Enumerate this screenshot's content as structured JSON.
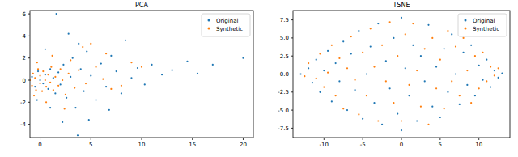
{
  "chart_data": [
    {
      "type": "scatter",
      "title": "PCA",
      "xlim": [
        -1,
        21
      ],
      "ylim": [
        -5.2,
        6.3
      ],
      "xticks": [
        0,
        5,
        10,
        15,
        20
      ],
      "yticks": [
        -4,
        -2,
        0,
        2,
        4,
        6
      ],
      "legend": "upper right",
      "series": [
        {
          "name": "Original",
          "color": "#1f77b4",
          "marker": "circle",
          "x": [
            -0.8,
            -0.5,
            -0.2,
            0,
            0.3,
            0.5,
            0.8,
            1,
            1.3,
            1.5,
            1.8,
            2,
            2.3,
            2.6,
            3,
            3.2,
            3.5,
            3.7,
            4,
            4.3,
            4.6,
            5,
            5.5,
            6,
            6.5,
            7,
            7.5,
            8,
            8.4,
            9,
            9.6,
            10.3,
            11,
            12,
            13,
            14.5,
            15.5,
            17,
            20,
            1.6,
            2.2,
            0.5,
            1,
            2.8,
            -0.3,
            6.8,
            4.8,
            3.8
          ],
          "values": [
            0.3,
            -0.6,
            0.8,
            0,
            -0.3,
            0.5,
            -0.8,
            1,
            0.2,
            -1.2,
            0.7,
            -0.4,
            1.4,
            -1.6,
            0.3,
            2,
            -2.5,
            -5,
            1,
            -1,
            2.6,
            0.4,
            -1.8,
            1.5,
            -0.6,
            2.2,
            0.8,
            -1.2,
            3.6,
            0.2,
            1.1,
            -0.4,
            1.4,
            0.5,
            0.9,
            1.7,
            0.6,
            1.4,
            2,
            6,
            -3.8,
            2.8,
            -2.5,
            4.2,
            -1.8,
            -2.7,
            -3.6,
            3.3
          ]
        },
        {
          "name": "Synthetic",
          "color": "#ff7f0e",
          "marker": "circle",
          "x": [
            -1,
            -0.8,
            -0.7,
            -0.5,
            -0.4,
            -0.2,
            0,
            0,
            0.2,
            0.3,
            0.5,
            0.6,
            0.8,
            1,
            1.1,
            1.3,
            1.5,
            1.8,
            2,
            2.2,
            2.5,
            2.8,
            3,
            3.4,
            3.8,
            4.2,
            5,
            4.5,
            5.5,
            6.2,
            7,
            8,
            9,
            10,
            6.5,
            1.2,
            0.6,
            2.4,
            -0.3,
            -0.6
          ],
          "values": [
            0,
            -0.5,
            0.6,
            0.2,
            -0.9,
            1,
            -0.3,
            0.4,
            -1,
            0.8,
            0,
            -0.6,
            0.5,
            -0.2,
            1.2,
            -0.9,
            0.3,
            -0.5,
            1,
            0,
            -1.3,
            0.6,
            1.8,
            -0.7,
            0.9,
            3,
            3.3,
            -0.3,
            1.2,
            0.1,
            -0.8,
            -0.5,
            1.6,
            1.2,
            2.4,
            2.2,
            -2,
            -2.6,
            1.6,
            -1.4
          ]
        }
      ]
    },
    {
      "type": "scatter",
      "title": "TSNE",
      "xlim": [
        -14,
        14
      ],
      "ylim": [
        -8.8,
        8.8
      ],
      "xticks": [
        {
          "value": -10,
          "label": "-10"
        },
        {
          "value": -5,
          "label": "-5"
        },
        0,
        5,
        10
      ],
      "yticks": [
        {
          "value": -7.5,
          "label": "-7.5"
        },
        {
          "value": -5,
          "label": "-5.0"
        },
        {
          "value": -2.5,
          "label": "-2.5"
        },
        {
          "value": 0,
          "label": "0.0"
        },
        2.5,
        {
          "value": 5,
          "label": "5.0"
        },
        7.5
      ],
      "legend": "upper right",
      "series": [
        {
          "name": "Original",
          "color": "#1f77b4",
          "marker": "circle",
          "x": [
            -13,
            -12,
            -11.5,
            -11,
            -10.5,
            -10,
            -9.5,
            -9,
            -8.5,
            -8,
            -7.5,
            -7,
            -6.5,
            -6,
            -5.5,
            -5,
            -4.5,
            -4,
            -3.5,
            -3,
            -2.5,
            -2,
            -1.5,
            -1,
            -0.5,
            0,
            0,
            0.5,
            1,
            1.5,
            2,
            2.5,
            3,
            3.5,
            4,
            4.5,
            5,
            5.5,
            6,
            6.5,
            7,
            7.5,
            8,
            8.5,
            9,
            9.5,
            10,
            10.5,
            11,
            11.5,
            12,
            12.5,
            13
          ],
          "values": [
            0,
            0.8,
            -1.2,
            2,
            -2.5,
            0.5,
            3.2,
            -3.8,
            1.5,
            -1,
            4.5,
            -5,
            2.8,
            -2.2,
            6,
            -6.2,
            0,
            3.8,
            -4,
            7,
            -7,
            1.8,
            -2,
            5,
            -5.5,
            7.8,
            -7.8,
            0.8,
            -3,
            4,
            -6.5,
            2.5,
            -1,
            6.8,
            -4.5,
            1,
            -6,
            3.5,
            -2.5,
            5.5,
            0,
            -4.2,
            3,
            -1.5,
            4,
            -3,
            1.2,
            -0.8,
            2,
            -1.8,
            0.5,
            -0.5,
            0.1
          ]
        },
        {
          "name": "Synthetic",
          "color": "#ff7f0e",
          "marker": "circle",
          "x": [
            -12.5,
            -12,
            -11,
            -10.5,
            -10,
            -9.5,
            -9,
            -8.5,
            -8,
            -7.5,
            -7,
            -6.5,
            -6,
            -5.5,
            -5,
            -4.5,
            -4,
            -3.5,
            -3,
            -2.5,
            -2,
            -1.5,
            -1,
            -0.5,
            0,
            0.5,
            1,
            1.5,
            2,
            2.5,
            3,
            3.5,
            4,
            4.5,
            5,
            5.5,
            6,
            6.5,
            7,
            7.5,
            8,
            8.5,
            9,
            9.5,
            10,
            10.5,
            11,
            11.5,
            12,
            12.5
          ],
          "values": [
            -0.3,
            1.5,
            -0.6,
            2.8,
            -1.8,
            0.2,
            4,
            -3,
            2.2,
            -4.8,
            0.8,
            5.2,
            -0.8,
            -5.6,
            3,
            -3,
            6.3,
            1,
            -6.5,
            4,
            -1,
            7.2,
            -4,
            2.5,
            -6.5,
            5.5,
            -1.5,
            7,
            0.5,
            -4.5,
            3.5,
            -7,
            5,
            -2,
            2,
            -4.8,
            6,
            -1,
            3.8,
            -3,
            5,
            0.5,
            -4,
            2.5,
            -2,
            3,
            -1,
            1,
            -0.2,
            0.8
          ]
        }
      ]
    }
  ]
}
